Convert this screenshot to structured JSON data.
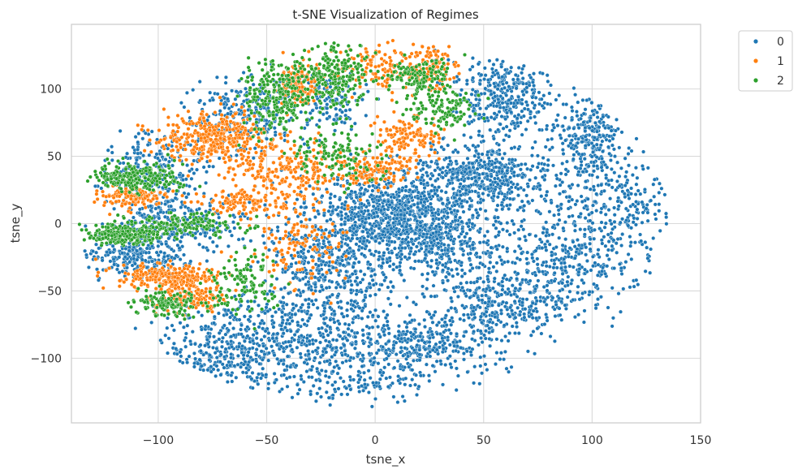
{
  "chart_data": {
    "type": "scatter",
    "title": "t-SNE Visualization of Regimes",
    "xlabel": "tsne_x",
    "ylabel": "tsne_y",
    "xlim": [
      -140,
      150
    ],
    "ylim": [
      -148,
      148
    ],
    "xticks": [
      -100,
      -50,
      0,
      50,
      100,
      150
    ],
    "yticks": [
      -100,
      -50,
      0,
      50,
      100
    ],
    "xtick_labels": [
      "−100",
      "−50",
      "0",
      "50",
      "100",
      "150"
    ],
    "ytick_labels": [
      "−100",
      "−50",
      "0",
      "50",
      "100"
    ],
    "grid": true,
    "legend_placement": "outside-top-right",
    "legend_title": "",
    "series": [
      {
        "name": "0",
        "color": "#1f77b4",
        "clusters": [
          {
            "cx": 5,
            "cy": 10,
            "sx": 15,
            "sy": 15,
            "weight": 5
          },
          {
            "cx": 30,
            "cy": -10,
            "sx": 18,
            "sy": 18,
            "weight": 5
          },
          {
            "cx": 50,
            "cy": 35,
            "sx": 15,
            "sy": 12,
            "weight": 4
          },
          {
            "cx": 60,
            "cy": 95,
            "sx": 12,
            "sy": 15,
            "weight": 3
          },
          {
            "cx": 100,
            "cy": 65,
            "sx": 8,
            "sy": 15,
            "weight": 2
          },
          {
            "cx": 110,
            "cy": 15,
            "sx": 18,
            "sy": 22,
            "weight": 3
          },
          {
            "cx": -20,
            "cy": -25,
            "sx": 15,
            "sy": 20,
            "weight": 4
          },
          {
            "cx": -35,
            "cy": -85,
            "sx": 20,
            "sy": 20,
            "weight": 4
          },
          {
            "cx": 20,
            "cy": -90,
            "sx": 20,
            "sy": 10,
            "weight": 3
          },
          {
            "cx": 60,
            "cy": -60,
            "sx": 18,
            "sy": 12,
            "weight": 3
          },
          {
            "cx": -75,
            "cy": -100,
            "sx": 15,
            "sy": 18,
            "weight": 3
          },
          {
            "cx": -100,
            "cy": 40,
            "sx": 12,
            "sy": 15,
            "weight": 2
          },
          {
            "cx": -60,
            "cy": 80,
            "sx": 12,
            "sy": 15,
            "weight": 2
          },
          {
            "cx": -110,
            "cy": -25,
            "sx": 12,
            "sy": 8,
            "weight": 2
          },
          {
            "cx": -90,
            "cy": 0,
            "sx": 15,
            "sy": 10,
            "weight": 2
          },
          {
            "cx": -20,
            "cy": 90,
            "sx": 8,
            "sy": 10,
            "weight": 1
          },
          {
            "cx": 90,
            "cy": -30,
            "sx": 15,
            "sy": 15,
            "weight": 2
          },
          {
            "cx": -5,
            "cy": -120,
            "sx": 20,
            "sy": 8,
            "weight": 1
          }
        ]
      },
      {
        "name": "1",
        "color": "#ff7f0e",
        "clusters": [
          {
            "cx": -75,
            "cy": 65,
            "sx": 12,
            "sy": 10,
            "weight": 3
          },
          {
            "cx": -95,
            "cy": -40,
            "sx": 12,
            "sy": 5,
            "weight": 2
          },
          {
            "cx": -110,
            "cy": 20,
            "sx": 8,
            "sy": 4,
            "weight": 1
          },
          {
            "cx": -35,
            "cy": 105,
            "sx": 5,
            "sy": 8,
            "weight": 1
          },
          {
            "cx": 15,
            "cy": 65,
            "sx": 8,
            "sy": 8,
            "weight": 1
          },
          {
            "cx": 0,
            "cy": 115,
            "sx": 12,
            "sy": 10,
            "weight": 1
          },
          {
            "cx": 25,
            "cy": 115,
            "sx": 6,
            "sy": 8,
            "weight": 1
          },
          {
            "cx": -40,
            "cy": 40,
            "sx": 15,
            "sy": 12,
            "weight": 2
          },
          {
            "cx": -60,
            "cy": 15,
            "sx": 12,
            "sy": 5,
            "weight": 1
          },
          {
            "cx": -35,
            "cy": -15,
            "sx": 10,
            "sy": 15,
            "weight": 1
          },
          {
            "cx": -85,
            "cy": -55,
            "sx": 8,
            "sy": 5,
            "weight": 1
          },
          {
            "cx": 0,
            "cy": 40,
            "sx": 8,
            "sy": 6,
            "weight": 1
          }
        ]
      },
      {
        "name": "2",
        "color": "#2ca02c",
        "clusters": [
          {
            "cx": -110,
            "cy": 35,
            "sx": 10,
            "sy": 5,
            "weight": 2
          },
          {
            "cx": -115,
            "cy": -8,
            "sx": 10,
            "sy": 4,
            "weight": 2
          },
          {
            "cx": -95,
            "cy": -60,
            "sx": 10,
            "sy": 5,
            "weight": 1
          },
          {
            "cx": -45,
            "cy": 95,
            "sx": 8,
            "sy": 15,
            "weight": 2
          },
          {
            "cx": -20,
            "cy": 110,
            "sx": 10,
            "sy": 12,
            "weight": 2
          },
          {
            "cx": 30,
            "cy": 85,
            "sx": 8,
            "sy": 8,
            "weight": 1
          },
          {
            "cx": -15,
            "cy": 50,
            "sx": 10,
            "sy": 12,
            "weight": 1
          },
          {
            "cx": -85,
            "cy": 0,
            "sx": 15,
            "sy": 4,
            "weight": 1
          },
          {
            "cx": -60,
            "cy": -45,
            "sx": 8,
            "sy": 10,
            "weight": 1
          },
          {
            "cx": 20,
            "cy": 110,
            "sx": 8,
            "sy": 6,
            "weight": 1
          }
        ]
      }
    ]
  }
}
